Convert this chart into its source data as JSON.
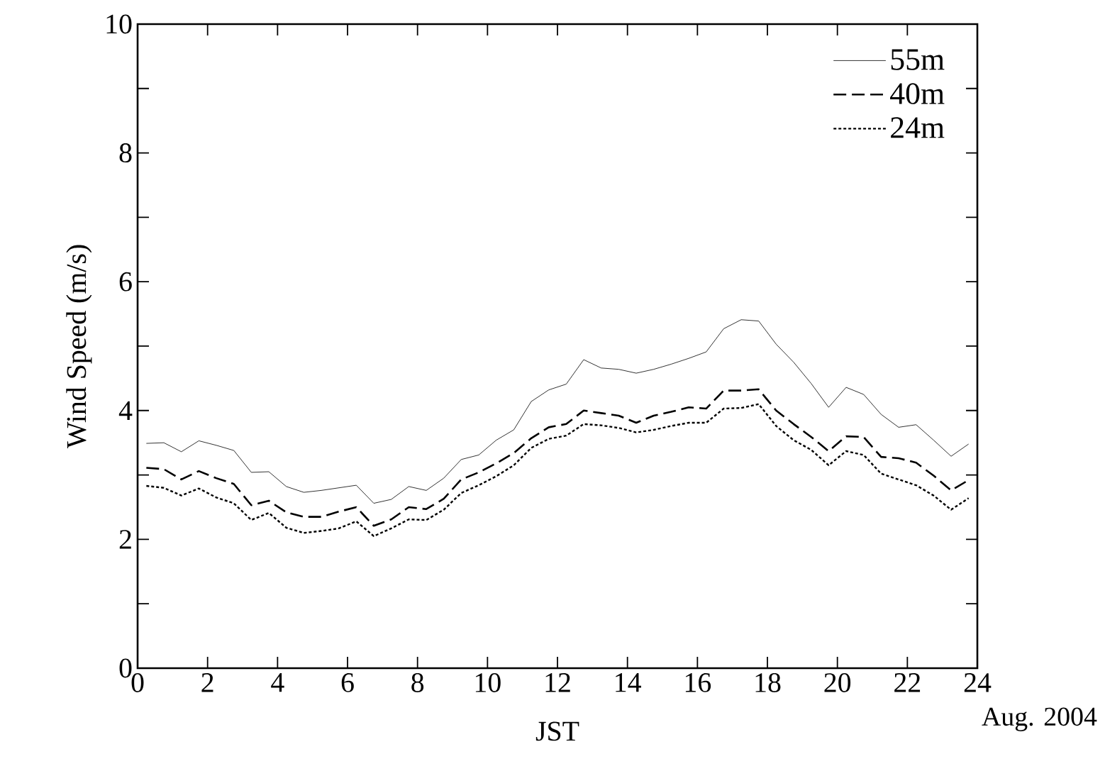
{
  "chart_data": {
    "type": "line",
    "xlabel": "JST",
    "ylabel": "Wind Speed (m/s)",
    "x": [
      0.25,
      0.75,
      1.25,
      1.75,
      2.25,
      2.75,
      3.25,
      3.75,
      4.25,
      4.75,
      5.25,
      5.75,
      6.25,
      6.75,
      7.25,
      7.75,
      8.25,
      8.75,
      9.25,
      9.75,
      10.25,
      10.75,
      11.25,
      11.75,
      12.25,
      12.75,
      13.25,
      13.75,
      14.25,
      14.75,
      15.25,
      15.75,
      16.25,
      16.75,
      17.25,
      17.75,
      18.25,
      18.75,
      19.25,
      19.75,
      20.25,
      20.75,
      21.25,
      21.75,
      22.25,
      22.75,
      23.25,
      23.75
    ],
    "series": [
      {
        "name": "55m",
        "color": "#000000",
        "line_style": "solid",
        "values": [
          3.49,
          3.5,
          3.36,
          3.53,
          3.46,
          3.38,
          3.04,
          3.05,
          2.82,
          2.73,
          2.76,
          2.8,
          2.84,
          2.56,
          2.62,
          2.82,
          2.76,
          2.95,
          3.24,
          3.31,
          3.54,
          3.7,
          4.14,
          4.32,
          4.41,
          4.79,
          4.66,
          4.64,
          4.58,
          4.64,
          4.72,
          4.81,
          4.91,
          5.27,
          5.41,
          5.39,
          5.03,
          4.75,
          4.42,
          4.05,
          4.36,
          4.25,
          3.94,
          3.74,
          3.78,
          3.54,
          3.29,
          3.48
        ]
      },
      {
        "name": "40m",
        "color": "#000000",
        "line_style": "dashed",
        "values": [
          3.11,
          3.09,
          2.93,
          3.06,
          2.95,
          2.86,
          2.53,
          2.6,
          2.42,
          2.35,
          2.35,
          2.43,
          2.5,
          2.21,
          2.31,
          2.5,
          2.47,
          2.63,
          2.93,
          3.04,
          3.18,
          3.34,
          3.57,
          3.74,
          3.79,
          4.0,
          3.96,
          3.92,
          3.81,
          3.92,
          3.98,
          4.05,
          4.03,
          4.31,
          4.31,
          4.33,
          4.0,
          3.79,
          3.59,
          3.37,
          3.6,
          3.59,
          3.28,
          3.26,
          3.19,
          2.99,
          2.76,
          2.92
        ]
      },
      {
        "name": "24m",
        "color": "#000000",
        "line_style": "dotted",
        "values": [
          2.83,
          2.8,
          2.68,
          2.79,
          2.65,
          2.56,
          2.3,
          2.41,
          2.18,
          2.1,
          2.13,
          2.17,
          2.28,
          2.05,
          2.17,
          2.31,
          2.3,
          2.46,
          2.72,
          2.84,
          2.98,
          3.15,
          3.42,
          3.56,
          3.61,
          3.79,
          3.77,
          3.73,
          3.66,
          3.7,
          3.76,
          3.81,
          3.81,
          4.03,
          4.04,
          4.1,
          3.76,
          3.54,
          3.39,
          3.15,
          3.37,
          3.31,
          3.02,
          2.93,
          2.84,
          2.68,
          2.46,
          2.64
        ]
      }
    ],
    "xlim": [
      0,
      24
    ],
    "xticks": [
      0,
      2,
      4,
      6,
      8,
      10,
      12,
      14,
      16,
      18,
      20,
      22,
      24
    ],
    "ylim": [
      0,
      10
    ],
    "yticks": [
      0,
      {
        "value": 1,
        "label": null
      },
      2,
      {
        "value": 3,
        "label": null
      },
      4,
      {
        "value": 5,
        "label": null
      },
      6,
      {
        "value": 7,
        "label": null
      },
      8,
      {
        "value": 9,
        "label": null
      },
      10
    ],
    "grid": false,
    "legend": "top right",
    "annotations": [
      "Aug. 2004"
    ]
  }
}
